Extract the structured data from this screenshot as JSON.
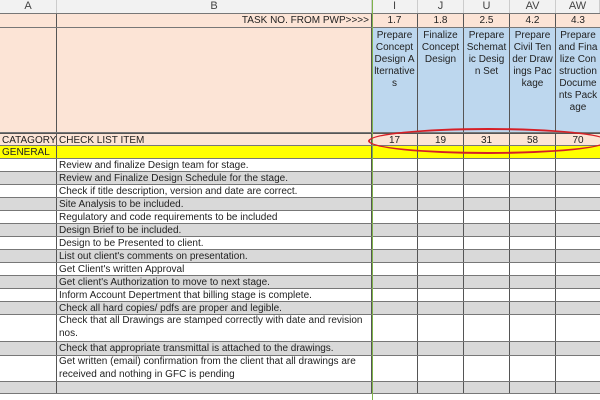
{
  "columns": [
    "A",
    "B",
    "I",
    "J",
    "U",
    "AV",
    "AW"
  ],
  "task_row": {
    "label": "TASK NO. FROM PWP>>>>",
    "values": [
      "1.7",
      "1.8",
      "2.5",
      "4.2",
      "4.3"
    ]
  },
  "tasks": [
    "Prepare Concept Design Alternatives",
    "Finalize Concept Design",
    "Prepare Schematic Design Set",
    "Prepare Civil Tender Drawings Package",
    "Prepare and Finalize Construction Documents Package"
  ],
  "category_row": {
    "category": "CATAGORY",
    "item": "CHECK LIST ITEM",
    "values": [
      "17",
      "19",
      "31",
      "58",
      "70"
    ]
  },
  "section": "GENERAL",
  "items": [
    "Review and finalize Design team for stage.",
    "Review and Finalize Design Schedule for the stage.",
    "Check if title description, version and date are correct.",
    "Site Analysis to be included.",
    "Regulatory and code requirements to be included",
    "Design Brief to be included.",
    "Design to be Presented to client.",
    "List out client's comments on presentation.",
    "Get Client's written Approval",
    "Get client's Authorization to move to next stage.",
    "Inform Account Depertment that billing stage is complete.",
    "Check all hard copies/ pdfs are proper and legible.",
    "Check that all Drawings are stamped correctly with date and revision nos.",
    "Check that appropriate transmittal is attached to the drawings.",
    "Get written (email) confirmation from the client that all drawings are received and nothing in GFC is pending",
    ""
  ],
  "colors": {
    "header_fill": "#fce4d6",
    "task_fill": "#bdd7ee",
    "section_fill": "#ffff00",
    "alt_row": "#d9d9d9",
    "highlight": "#d61f26"
  }
}
